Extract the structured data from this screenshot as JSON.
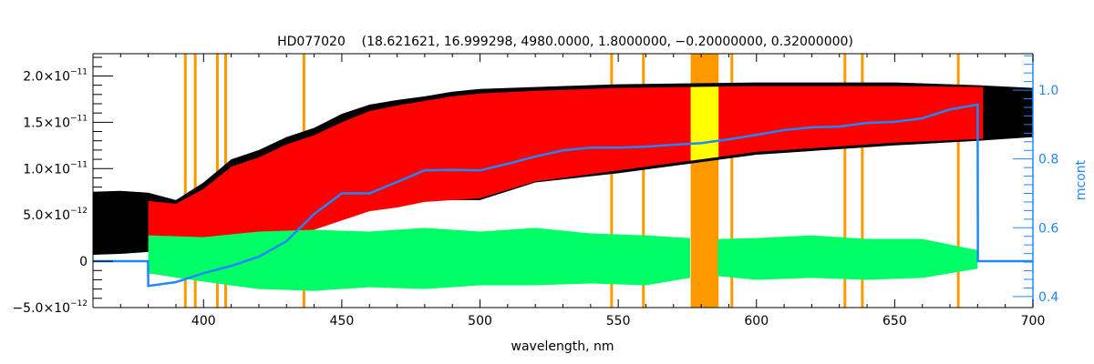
{
  "chart_data": {
    "type": "line",
    "title": "HD077020    (18.621621, 16.999298, 4980.0000, 1.8000000, −0.20000000, 0.32000000)",
    "xlabel": "wavelength, nm",
    "ylabel_right": "mcont",
    "xlim": [
      360,
      700
    ],
    "ylim_left": [
      -5e-12,
      2.24e-11
    ],
    "ylim_right": [
      0.368,
      1.106
    ],
    "grid": false,
    "x_ticks": [
      400,
      450,
      500,
      550,
      600,
      650,
      700
    ],
    "y_ticks_left": [
      {
        "value": 2e-11,
        "mantissa": "2.0×10",
        "exponent": "−11"
      },
      {
        "value": 1.5e-11,
        "mantissa": "1.5×10",
        "exponent": "−11"
      },
      {
        "value": 1e-11,
        "mantissa": "1.0×10",
        "exponent": "−11"
      },
      {
        "value": 5e-12,
        "mantissa": "5.0×10",
        "exponent": "−12"
      },
      {
        "value": 0,
        "mantissa": "0",
        "exponent": ""
      },
      {
        "value": -5e-12,
        "mantissa": "−5.0×10",
        "exponent": "−12"
      }
    ],
    "y_ticks_right": [
      {
        "value": 1.0,
        "label": "1.0"
      },
      {
        "value": 0.8,
        "label": "0.8"
      },
      {
        "value": 0.6,
        "label": "0.6"
      },
      {
        "value": 0.4,
        "label": "0.4"
      }
    ],
    "colors": {
      "observed": "#000000",
      "model": "#ff0000",
      "model_masked": "#ffff00",
      "residuals": "#00ff66",
      "mcont": "#1f87ff",
      "masks": "#ff9900",
      "right_axis": "#1f87ff"
    },
    "masked_regions_nm": [
      [
        392.9,
        393.9
      ],
      [
        396.5,
        397.5
      ],
      [
        404.5,
        405.5
      ],
      [
        407.5,
        408.5
      ],
      [
        435.8,
        436.8
      ],
      [
        547.1,
        548.1
      ],
      [
        558.6,
        559.6
      ],
      [
        576.2,
        586.3
      ],
      [
        590.6,
        591.6
      ],
      [
        631.5,
        632.5
      ],
      [
        637.8,
        638.8
      ],
      [
        672.5,
        673.5
      ]
    ],
    "observed_flux_envelope": {
      "x": [
        360,
        370,
        380,
        390,
        400,
        410,
        420,
        430,
        440,
        450,
        460,
        470,
        480,
        490,
        500,
        520,
        550,
        600,
        650,
        680,
        700
      ],
      "upper": [
        7.5e-12,
        7.6e-12,
        7.4e-12,
        6.6e-12,
        8.5e-12,
        1.1e-11,
        1.2e-11,
        1.34e-11,
        1.44e-11,
        1.59e-11,
        1.69e-11,
        1.74e-11,
        1.78e-11,
        1.83e-11,
        1.86e-11,
        1.88e-11,
        1.91e-11,
        1.93e-11,
        1.93e-11,
        1.9e-11,
        1.87e-11
      ],
      "lower": [
        7e-13,
        8e-13,
        1e-12,
        1.7e-12,
        1.7e-12,
        2.2e-12,
        2.6e-12,
        3e-12,
        3.6e-12,
        4.6e-12,
        5.6e-12,
        6e-12,
        6.6e-12,
        6.6e-12,
        6.6e-12,
        8.5e-12,
        9.5e-12,
        1.15e-11,
        1.25e-11,
        1.3e-11,
        1.34e-11
      ]
    },
    "model_flux_envelope": {
      "x": [
        380,
        390,
        400,
        410,
        420,
        430,
        440,
        450,
        460,
        470,
        480,
        490,
        500,
        520,
        550,
        600,
        650,
        682
      ],
      "upper": [
        6.5e-12,
        6.2e-12,
        7.8e-12,
        1.02e-11,
        1.12e-11,
        1.26e-11,
        1.36e-11,
        1.5e-11,
        1.62e-11,
        1.68e-11,
        1.73e-11,
        1.78e-11,
        1.81e-11,
        1.84e-11,
        1.87e-11,
        1.89e-11,
        1.89e-11,
        1.88e-11
      ],
      "lower": [
        9e-13,
        1.2e-12,
        1.5e-12,
        1.9e-12,
        2.3e-12,
        2.8e-12,
        3.4e-12,
        4.4e-12,
        5.4e-12,
        5.8e-12,
        6.4e-12,
        6.6e-12,
        6.8e-12,
        8.6e-12,
        9.8e-12,
        1.18e-11,
        1.28e-11,
        1.32e-11
      ]
    },
    "residuals_envelope": {
      "x": [
        380,
        400,
        420,
        440,
        460,
        480,
        500,
        520,
        540,
        560,
        576,
        586,
        600,
        620,
        640,
        660,
        680
      ],
      "upper": [
        2.8e-12,
        2.6e-12,
        3.2e-12,
        3.4e-12,
        3.2e-12,
        3.6e-12,
        3.2e-12,
        3.6e-12,
        3e-12,
        2.8e-12,
        2.5e-12,
        2.4e-12,
        2.5e-12,
        2.8e-12,
        2.4e-12,
        2.4e-12,
        1.2e-12
      ],
      "lower": [
        -1.3e-12,
        -2.2e-12,
        -3e-12,
        -3.2e-12,
        -2.8e-12,
        -3e-12,
        -2.6e-12,
        -2.6e-12,
        -2.4e-12,
        -2.6e-12,
        -1.8e-12,
        -1.6e-12,
        -2e-12,
        -1.8e-12,
        -2e-12,
        -1.8e-12,
        -8e-13
      ]
    },
    "mcont": {
      "x": [
        360,
        379.9,
        380,
        390,
        400,
        410,
        420,
        430,
        440,
        450,
        460,
        470,
        480,
        490,
        500,
        510,
        520,
        530,
        540,
        550,
        560,
        570,
        580,
        590,
        600,
        610,
        620,
        630,
        640,
        650,
        660,
        670,
        680,
        680.1,
        700
      ],
      "y": [
        0.503,
        0.503,
        0.431,
        0.442,
        0.468,
        0.489,
        0.516,
        0.561,
        0.64,
        0.7,
        0.7,
        0.733,
        0.767,
        0.768,
        0.767,
        0.786,
        0.807,
        0.825,
        0.833,
        0.833,
        0.836,
        0.841,
        0.846,
        0.857,
        0.87,
        0.884,
        0.892,
        0.894,
        0.905,
        0.908,
        0.918,
        0.944,
        0.958,
        0.503,
        0.503
      ]
    }
  }
}
